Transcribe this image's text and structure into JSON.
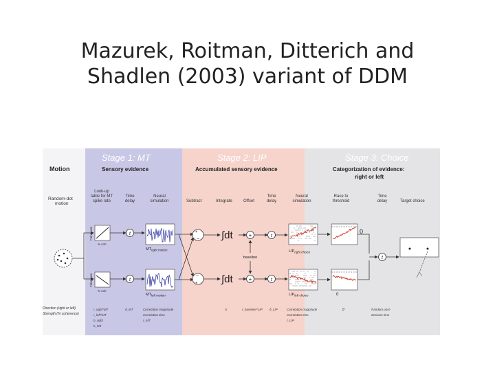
{
  "slide": {
    "title_line1": "Mazurek, Roitman, Ditterich and",
    "title_line2": "Shadlen (2003) variant of DDM"
  },
  "colors": {
    "stage1_bg": "#c9c7e6",
    "stage2_bg": "#f6d3cb",
    "stage3_bg": "#e4e4e6",
    "trace_blue": "#2b2f9a",
    "trace_red": "#cc3a2a"
  },
  "figure": {
    "left_column": {
      "motion_heading": "Motion",
      "stimulus_line1": "Random-dot",
      "stimulus_line2": "motion",
      "param_line1": "Direction (right or left)",
      "param_line2": "Strength (% coherence)"
    },
    "stage1": {
      "title": "Stage 1: MT",
      "subtitle": "Sensory evidence",
      "lookup_line1": "Look-up",
      "lookup_line2": "table for MT",
      "lookup_line3": "spike rate",
      "delay_line1": "Time",
      "delay_line2": "delay",
      "sim_line1": "Neural",
      "sim_line2": "simulation",
      "axis_y": "Firing rate",
      "axis_x": "% coh",
      "out_top": "MT",
      "out_top_sub": "right motion",
      "out_bottom": "MT",
      "out_bottom_sub": "left motion",
      "delay_symbol": "t",
      "param_a": "r_right^MT",
      "param_b": "r_left^MT",
      "param_c": "b_right",
      "param_d": "b_left",
      "param_e": "δ_MT",
      "param_f1": "Correlation magnitude",
      "param_f2": "Correlation time",
      "param_f3": "τ_MT"
    },
    "stage2": {
      "title": "Stage 2: LIP",
      "subtitle": "Accumulated sensory evidence",
      "subtract": "Subtract",
      "integrate": "Integrate",
      "offset": "Offset",
      "delay_line1": "Time",
      "delay_line2": "delay",
      "sim_line1": "Neural",
      "sim_line2": "simulation",
      "integral": "∫dt",
      "plus": "+",
      "minus": "−",
      "baseline": "baseline",
      "out_top": "LIP",
      "out_top_sub": "right choice",
      "out_bottom": "LIP",
      "out_bottom_sub": "left choice",
      "param_a": "k",
      "param_b": "r_baseline^LIP",
      "param_c": "δ_LIP",
      "param_d1": "Correlation magnitude",
      "param_d2": "Correlation time",
      "param_d3": "τ_LIP"
    },
    "stage3": {
      "title": "Stage 3: Choice",
      "subtitle_line1": "Categorization of evidence:",
      "subtitle_line2": "right or left",
      "race_line1": "Race to",
      "race_line2": "threshold",
      "delay_line1": "Time",
      "delay_line2": "delay",
      "target": "Target choice",
      "zero_top": "0",
      "zero_bottom": "0",
      "param_a": "θ",
      "param_b1": "Random post-",
      "param_b2": "decision time"
    }
  }
}
